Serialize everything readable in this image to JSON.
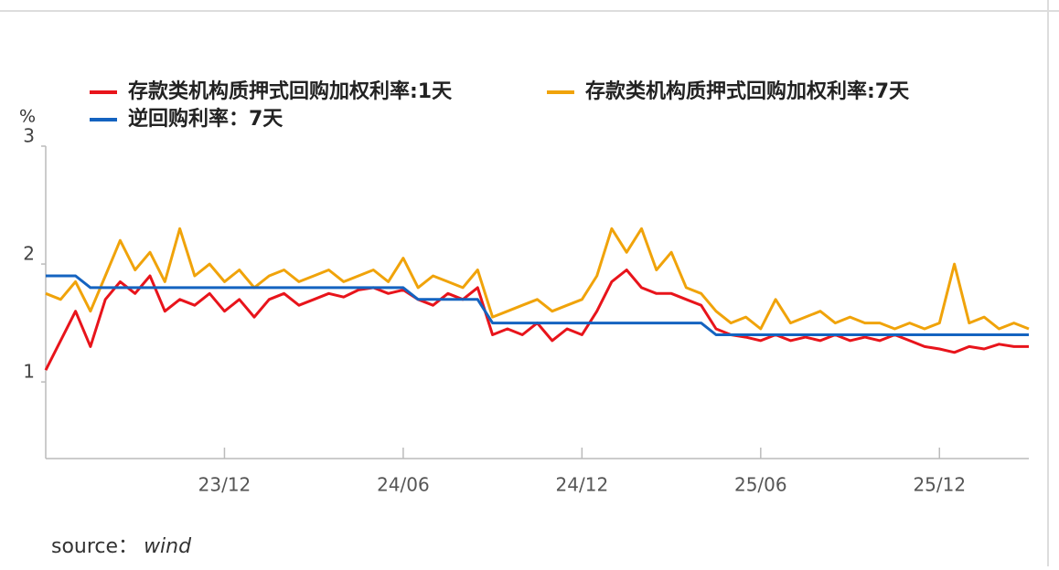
{
  "chart_data": {
    "type": "line",
    "ylabel": "%",
    "source_label": "source：",
    "source_name": "wind",
    "categories": [
      null,
      null,
      null,
      null,
      null,
      null,
      null,
      null,
      null,
      null,
      null,
      null,
      "23/12",
      null,
      null,
      null,
      null,
      null,
      null,
      null,
      null,
      null,
      null,
      null,
      "24/06",
      null,
      null,
      null,
      null,
      null,
      null,
      null,
      null,
      null,
      null,
      null,
      "24/12",
      null,
      null,
      null,
      null,
      null,
      null,
      null,
      null,
      null,
      null,
      null,
      "25/06",
      null,
      null,
      null,
      null,
      null,
      null,
      null,
      null,
      null,
      null,
      null,
      "25/12",
      null,
      null,
      null,
      null,
      null,
      null
    ],
    "series": [
      {
        "name": "存款类机构质押式回购加权利率:1天",
        "color": "#e8141b",
        "values": [
          1.1,
          1.35,
          1.6,
          1.3,
          1.7,
          1.85,
          1.75,
          1.9,
          1.6,
          1.7,
          1.65,
          1.75,
          1.6,
          1.7,
          1.55,
          1.7,
          1.75,
          1.65,
          1.7,
          1.75,
          1.72,
          1.78,
          1.8,
          1.75,
          1.78,
          1.7,
          1.65,
          1.75,
          1.7,
          1.8,
          1.4,
          1.45,
          1.4,
          1.5,
          1.35,
          1.45,
          1.4,
          1.6,
          1.85,
          1.95,
          1.8,
          1.75,
          1.75,
          1.7,
          1.65,
          1.45,
          1.4,
          1.38,
          1.35,
          1.4,
          1.35,
          1.38,
          1.35,
          1.4,
          1.35,
          1.38,
          1.35,
          1.4,
          1.35,
          1.3,
          1.28,
          1.25,
          1.3,
          1.28,
          1.32,
          1.3,
          1.3
        ]
      },
      {
        "name": "存款类机构质押式回购加权利率:7天",
        "color": "#f0a30a",
        "values": [
          1.75,
          1.7,
          1.85,
          1.6,
          1.9,
          2.2,
          1.95,
          2.1,
          1.85,
          2.3,
          1.9,
          2.0,
          1.85,
          1.95,
          1.8,
          1.9,
          1.95,
          1.85,
          1.9,
          1.95,
          1.85,
          1.9,
          1.95,
          1.85,
          2.05,
          1.8,
          1.9,
          1.85,
          1.8,
          1.95,
          1.55,
          1.6,
          1.65,
          1.7,
          1.6,
          1.65,
          1.7,
          1.9,
          2.3,
          2.1,
          2.3,
          1.95,
          2.1,
          1.8,
          1.75,
          1.6,
          1.5,
          1.55,
          1.45,
          1.7,
          1.5,
          1.55,
          1.6,
          1.5,
          1.55,
          1.5,
          1.5,
          1.45,
          1.5,
          1.45,
          1.5,
          2.0,
          1.5,
          1.55,
          1.45,
          1.5,
          1.45
        ]
      },
      {
        "name": "逆回购利率：7天",
        "color": "#1463c0",
        "values": [
          1.9,
          1.9,
          1.9,
          1.8,
          1.8,
          1.8,
          1.8,
          1.8,
          1.8,
          1.8,
          1.8,
          1.8,
          1.8,
          1.8,
          1.8,
          1.8,
          1.8,
          1.8,
          1.8,
          1.8,
          1.8,
          1.8,
          1.8,
          1.8,
          1.8,
          1.7,
          1.7,
          1.7,
          1.7,
          1.7,
          1.5,
          1.5,
          1.5,
          1.5,
          1.5,
          1.5,
          1.5,
          1.5,
          1.5,
          1.5,
          1.5,
          1.5,
          1.5,
          1.5,
          1.5,
          1.4,
          1.4,
          1.4,
          1.4,
          1.4,
          1.4,
          1.4,
          1.4,
          1.4,
          1.4,
          1.4,
          1.4,
          1.4,
          1.4,
          1.4,
          1.4,
          1.4,
          1.4,
          1.4,
          1.4,
          1.4,
          1.4
        ]
      }
    ],
    "ylim": [
      0.35,
      3
    ],
    "yticks": [
      1,
      2,
      3
    ],
    "grid": false
  }
}
